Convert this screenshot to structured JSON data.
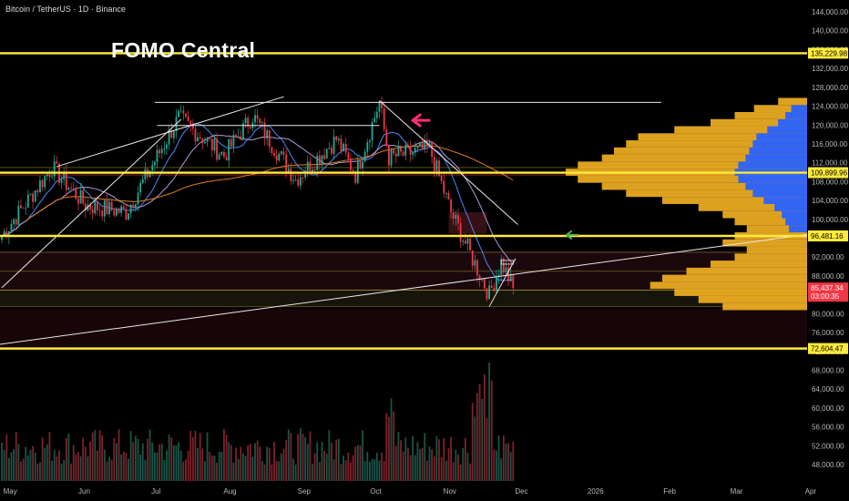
{
  "header": {
    "symbol_title": "Bitcoin / TetherUS · 1D · Binance",
    "overlay_title": "FOMO Central"
  },
  "price_box": {
    "price": "85,437.34",
    "countdown": "03:00:35"
  },
  "colors": {
    "background": "#000000",
    "key_level": "#ffeb3b",
    "red_level": "#f23645",
    "candle_up": "#22ab94",
    "candle_down": "#f23645",
    "ema_blue": "#4a8cff",
    "ema_purple": "#b39ddb",
    "ema_orange": "#e67e22",
    "volume_up": "#1b5e50",
    "volume_down": "#8b2630",
    "profile_yellow": "#f5b323",
    "profile_blue": "#2962ff",
    "pink_arrow": "#ff2d78",
    "green_arrow": "#4caf50"
  },
  "chart_data": {
    "type": "candlestick",
    "symbol": "BTCUSDT",
    "timeframe": "1D",
    "exchange": "Binance",
    "y_axis": {
      "ticks": [
        "144,000.00",
        "140,000.00",
        "136,000.00",
        "132,000.00",
        "128,000.00",
        "124,000.00",
        "120,000.00",
        "116,000.00",
        "112,000.00",
        "108,000.00",
        "104,000.00",
        "100,000.00",
        "96,000.00",
        "92,000.00",
        "88,000.00",
        "84,000.00",
        "80,000.00",
        "76,000.00",
        "72,000.00",
        "68,000.00",
        "64,000.00",
        "60,000.00",
        "56,000.00",
        "52,000.00",
        "48,000.00"
      ],
      "range": [
        46000,
        145500
      ]
    },
    "x_axis": {
      "ticks": [
        "May",
        "Jun",
        "Jul",
        "Aug",
        "Sep",
        "Oct",
        "Nov",
        "Dec",
        "2026",
        "Feb",
        "Mar",
        "Apr"
      ]
    },
    "horizontal_levels": [
      {
        "value": 135229.98,
        "label": "135,229.98",
        "color": "yellow"
      },
      {
        "value": 109899.96,
        "label": "109,899.96",
        "color": "yellow"
      },
      {
        "value": 96481.16,
        "label": "96,481.16",
        "color": "yellow"
      },
      {
        "value": 72604.47,
        "label": "72,604.47",
        "color": "yellow"
      }
    ],
    "last_price": 85437.34,
    "price_series": {
      "start": "2025-05-01",
      "close_anchors": [
        [
          "2025-05-01",
          96500
        ],
        [
          "2025-05-22",
          111000
        ],
        [
          "2025-06-05",
          103000
        ],
        [
          "2025-06-22",
          101500
        ],
        [
          "2025-07-14",
          121500
        ],
        [
          "2025-08-02",
          113500
        ],
        [
          "2025-08-14",
          122000
        ],
        [
          "2025-09-01",
          108500
        ],
        [
          "2025-09-18",
          117000
        ],
        [
          "2025-09-26",
          109500
        ],
        [
          "2025-10-06",
          124800
        ],
        [
          "2025-10-10",
          113000
        ],
        [
          "2025-10-27",
          115000
        ],
        [
          "2025-11-05",
          101500
        ],
        [
          "2025-11-21",
          84000
        ],
        [
          "2025-11-26",
          91000
        ],
        [
          "2025-12-01",
          85437.34
        ]
      ]
    },
    "volume_profile": {
      "buckets": [
        [
          81500,
          0.35
        ],
        [
          83000,
          0.45
        ],
        [
          84500,
          0.55
        ],
        [
          86000,
          0.65
        ],
        [
          87500,
          0.6
        ],
        [
          89000,
          0.5
        ],
        [
          90500,
          0.4
        ],
        [
          92000,
          0.3
        ],
        [
          93500,
          0.25
        ],
        [
          95000,
          0.35
        ],
        [
          96500,
          0.3
        ],
        [
          98000,
          0.25
        ],
        [
          99500,
          0.3
        ],
        [
          101000,
          0.35
        ],
        [
          102500,
          0.45
        ],
        [
          104000,
          0.6
        ],
        [
          105500,
          0.75
        ],
        [
          107000,
          0.85
        ],
        [
          108500,
          0.95
        ],
        [
          110000,
          1.0
        ],
        [
          111500,
          0.95
        ],
        [
          113000,
          0.85
        ],
        [
          114500,
          0.8
        ],
        [
          116000,
          0.75
        ],
        [
          117500,
          0.7
        ],
        [
          119000,
          0.55
        ],
        [
          120500,
          0.4
        ],
        [
          122000,
          0.3
        ],
        [
          123500,
          0.22
        ],
        [
          125000,
          0.12
        ]
      ],
      "value_area": [
        97000,
        124500
      ]
    }
  }
}
